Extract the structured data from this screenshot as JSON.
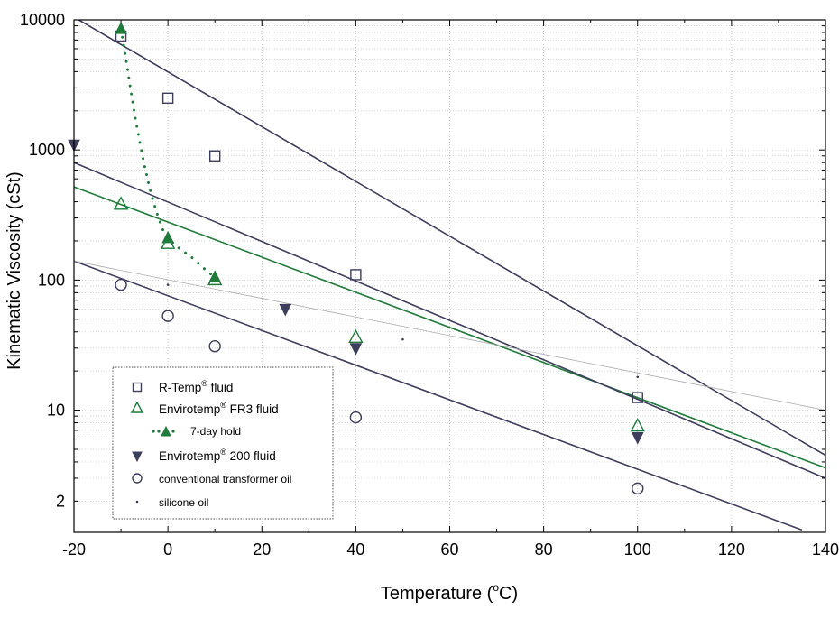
{
  "chart_data": {
    "type": "scatter",
    "title": "",
    "xlabel": "Temperature",
    "xlabel_unit_prefix": "o",
    "xlabel_unit": "C",
    "ylabel": "Kinematic Viscosity (cSt)",
    "xlim": [
      -20,
      140
    ],
    "ylim": [
      1.15,
      10000
    ],
    "yscale": "log",
    "x_ticks": [
      -20,
      0,
      20,
      40,
      60,
      80,
      100,
      120,
      140
    ],
    "y_ticks": [
      {
        "value": 10000,
        "label": "10000"
      },
      {
        "value": 1000,
        "label": "1000"
      },
      {
        "value": 100,
        "label": "100"
      },
      {
        "value": 10,
        "label": "10"
      },
      {
        "value": 2,
        "label": "2"
      }
    ],
    "grid": "dotted",
    "legend_position": "bottom-left",
    "series": [
      {
        "key": "rtemp",
        "name": "R-Temp",
        "name_suffix": "fluid",
        "registered": "®",
        "marker": "open-square",
        "color": "#3d3d5c",
        "points": [
          [
            -10,
            7500
          ],
          [
            0,
            2500
          ],
          [
            10,
            900
          ],
          [
            40,
            110
          ],
          [
            100,
            12.5
          ]
        ],
        "fit": {
          "x": [
            -20,
            140
          ],
          "y": [
            10500,
            4.5
          ]
        }
      },
      {
        "key": "fr3",
        "name": "Envirotemp",
        "name_suffix": "FR3 fluid",
        "registered": "®",
        "marker": "open-triangle",
        "color": "#1e7b3a",
        "points": [
          [
            -10,
            380
          ],
          [
            0,
            190
          ],
          [
            10,
            100
          ],
          [
            40,
            36
          ],
          [
            100,
            7.5
          ]
        ],
        "fit": {
          "x": [
            -20,
            140
          ],
          "y": [
            520,
            3.6
          ]
        }
      },
      {
        "key": "hold",
        "name": "7-day hold",
        "marker": "filled-triangle",
        "color": "#1e7b3a",
        "points": [
          [
            -10,
            8500
          ],
          [
            0,
            210
          ],
          [
            10,
            105
          ]
        ],
        "curve": {
          "x": [
            -10,
            -9,
            -8,
            -7,
            -6,
            -5,
            -4,
            -3,
            -2,
            -1,
            0,
            2,
            5,
            8,
            10
          ],
          "y": [
            8500,
            5200,
            3000,
            1800,
            1150,
            760,
            530,
            390,
            300,
            240,
            210,
            180,
            150,
            120,
            105
          ]
        }
      },
      {
        "key": "e200",
        "name": "Envirotemp",
        "name_suffix": "200 fluid",
        "registered": "®",
        "marker": "filled-down-triangle",
        "color": "#3d3d5c",
        "points": [
          [
            -20,
            1100
          ],
          [
            25,
            60
          ],
          [
            40,
            30
          ],
          [
            100,
            6.2
          ]
        ],
        "fit": {
          "x": [
            -20,
            140
          ],
          "y": [
            800,
            3.0
          ]
        }
      },
      {
        "key": "conv",
        "name": "conventional transformer oil",
        "marker": "open-circle",
        "color": "#3d3d5c",
        "points": [
          [
            -10,
            92
          ],
          [
            0,
            53
          ],
          [
            10,
            31
          ],
          [
            40,
            8.8
          ],
          [
            100,
            2.5
          ]
        ],
        "fit": {
          "x": [
            -20,
            135
          ],
          "y": [
            140,
            1.2
          ]
        }
      },
      {
        "key": "sil",
        "name": "silicone oil",
        "marker": "dot",
        "color": "#3d3d5c",
        "points": [
          [
            0,
            92
          ],
          [
            50,
            35
          ],
          [
            100,
            18
          ]
        ],
        "fit": {
          "x": [
            -20,
            140
          ],
          "y": [
            140,
            10
          ]
        }
      }
    ]
  }
}
